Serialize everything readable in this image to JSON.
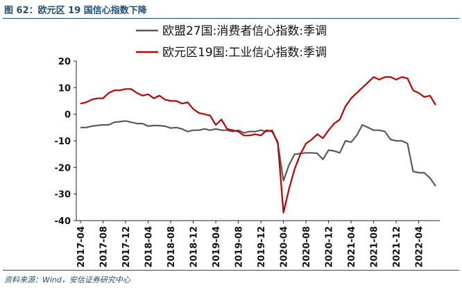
{
  "figure": {
    "title": "图 62：欧元区 19 国信心指数下降",
    "source": "资料来源：Wind，安信证券研究中心"
  },
  "chart_data": {
    "type": "line",
    "title": "",
    "xlabel": "",
    "ylabel": "",
    "ylim": [
      -40,
      20
    ],
    "yticks": [
      -40,
      -30,
      -20,
      -10,
      0,
      10,
      20
    ],
    "grid": false,
    "legend_position": "top-center",
    "x": [
      "2017-04",
      "2017-05",
      "2017-06",
      "2017-07",
      "2017-08",
      "2017-09",
      "2017-10",
      "2017-11",
      "2017-12",
      "2018-01",
      "2018-02",
      "2018-03",
      "2018-04",
      "2018-05",
      "2018-06",
      "2018-07",
      "2018-08",
      "2018-09",
      "2018-10",
      "2018-11",
      "2018-12",
      "2019-01",
      "2019-02",
      "2019-03",
      "2019-04",
      "2019-05",
      "2019-06",
      "2019-07",
      "2019-08",
      "2019-09",
      "2019-10",
      "2019-11",
      "2019-12",
      "2020-01",
      "2020-02",
      "2020-03",
      "2020-04",
      "2020-05",
      "2020-06",
      "2020-07",
      "2020-08",
      "2020-09",
      "2020-10",
      "2020-11",
      "2020-12",
      "2021-01",
      "2021-02",
      "2021-03",
      "2021-04",
      "2021-05",
      "2021-06",
      "2021-07",
      "2021-08",
      "2021-09",
      "2021-10",
      "2021-11",
      "2021-12",
      "2022-01",
      "2022-02",
      "2022-03",
      "2022-04",
      "2022-05",
      "2022-06",
      "2022-07"
    ],
    "xtick_labels": [
      "2017-04",
      "2017-08",
      "2017-12",
      "2018-04",
      "2018-08",
      "2018-12",
      "2019-04",
      "2019-08",
      "2019-12",
      "2020-04",
      "2020-08",
      "2020-12",
      "2021-04",
      "2021-08",
      "2021-12",
      "2022-04"
    ],
    "series": [
      {
        "name": "欧盟27国:消费者信心指数:季调",
        "color": "#595959",
        "values": [
          -5.0,
          -5.0,
          -4.5,
          -4.2,
          -4.0,
          -4.0,
          -3.0,
          -2.8,
          -2.5,
          -3.0,
          -3.5,
          -3.5,
          -4.5,
          -4.2,
          -4.3,
          -4.5,
          -5.2,
          -5.0,
          -5.5,
          -6.5,
          -6.0,
          -6.0,
          -5.5,
          -6.0,
          -5.5,
          -6.0,
          -6.0,
          -6.5,
          -6.0,
          -7.0,
          -6.5,
          -6.5,
          -6.0,
          -6.5,
          -6.0,
          -11.0,
          -25.0,
          -19.0,
          -15.0,
          -14.8,
          -14.5,
          -14.5,
          -14.7,
          -17.0,
          -13.5,
          -13.8,
          -14.5,
          -10.0,
          -10.5,
          -8.0,
          -4.0,
          -5.0,
          -6.0,
          -6.0,
          -6.5,
          -9.5,
          -10.0,
          -10.0,
          -11.0,
          -21.5,
          -22.0,
          -22.0,
          -24.0,
          -27.0
        ]
      },
      {
        "name": "欧元区19国:工业信心指数:季调",
        "color": "#c00000",
        "values": [
          4.0,
          4.5,
          5.5,
          6.0,
          6.0,
          8.0,
          9.0,
          9.0,
          9.5,
          9.5,
          8.0,
          7.0,
          7.5,
          6.0,
          7.0,
          5.5,
          5.0,
          5.0,
          4.0,
          4.5,
          2.0,
          0.5,
          0.0,
          -0.5,
          -4.0,
          -2.0,
          -5.5,
          -6.0,
          -6.5,
          -8.0,
          -8.0,
          -7.5,
          -8.0,
          -6.0,
          -6.5,
          -10.5,
          -37.0,
          -28.0,
          -20.5,
          -15.0,
          -11.0,
          -9.5,
          -7.5,
          -9.0,
          -6.0,
          -3.5,
          -2.0,
          3.0,
          6.0,
          8.0,
          10.0,
          12.0,
          14.0,
          13.0,
          14.0,
          14.0,
          13.0,
          14.0,
          13.5,
          9.0,
          8.0,
          6.5,
          7.0,
          3.5
        ]
      }
    ]
  }
}
